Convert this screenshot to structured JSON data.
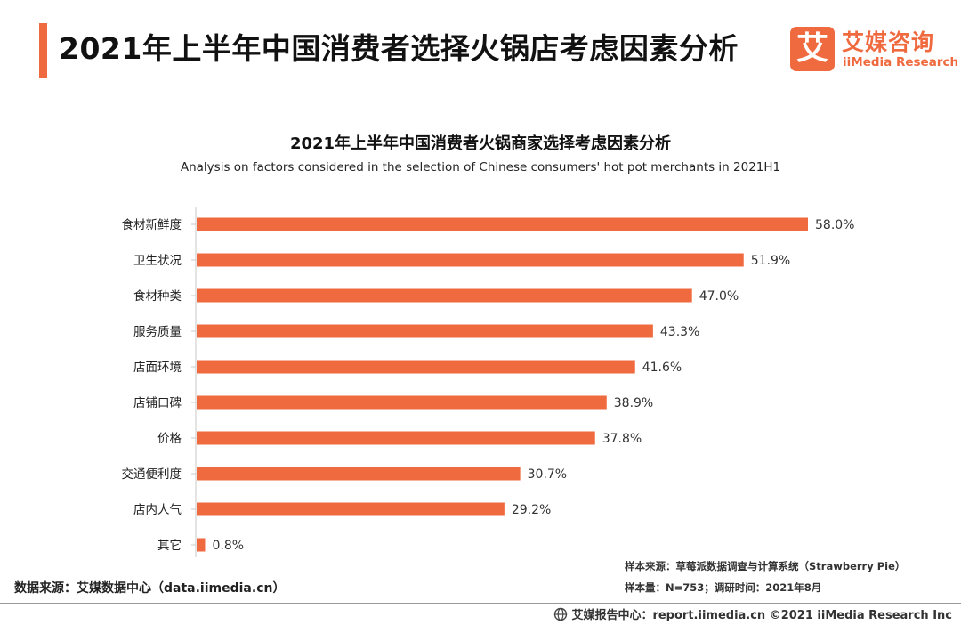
{
  "page": {
    "title": "2021年上半年中国消费者选择火锅店考虑因素分析"
  },
  "logo": {
    "mark": "艾",
    "cn": "艾媒咨询",
    "en": "iiMedia Research"
  },
  "colors": {
    "accent": "#f06a3f",
    "bar": "#f06a3f",
    "axis": "#c8c8c8"
  },
  "chart_data": {
    "type": "bar",
    "orientation": "horizontal",
    "title": "2021年上半年中国消费者火锅商家选择考虑因素分析",
    "subtitle": "Analysis on factors considered in the selection of Chinese consumers' hot pot merchants in 2021H1",
    "categories": [
      "食材新鲜度",
      "卫生状况",
      "食材种类",
      "服务质量",
      "店面环境",
      "店铺口碑",
      "价格",
      "交通便利度",
      "店内人气",
      "其它"
    ],
    "values": [
      58.0,
      51.9,
      47.0,
      43.3,
      41.6,
      38.9,
      37.8,
      30.7,
      29.2,
      0.8
    ],
    "value_labels": [
      "58.0%",
      "51.9%",
      "47.0%",
      "43.3%",
      "41.6%",
      "38.9%",
      "37.8%",
      "30.7%",
      "29.2%",
      "0.8%"
    ],
    "unit": "%",
    "xlim": [
      0,
      58
    ],
    "xlabel": "",
    "ylabel": "",
    "grid": false,
    "legend": "none"
  },
  "footnotes": {
    "sample_source": "样本来源：草莓派数据调查与计算系统（Strawberry Pie）",
    "sample_size": "样本量：N=753；调研时间：2021年8月",
    "data_source": "数据来源：艾媒数据中心（data.iimedia.cn）"
  },
  "footer": {
    "text": "艾媒报告中心：report.iimedia.cn  ©2021  iiMedia Research  Inc",
    "icon": "globe-icon"
  }
}
